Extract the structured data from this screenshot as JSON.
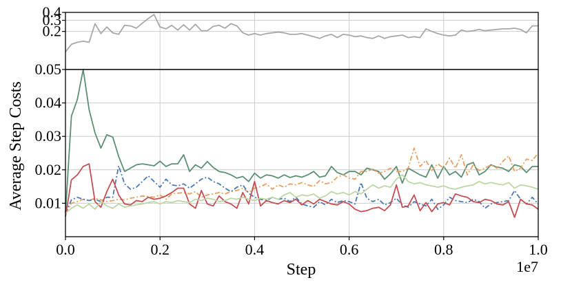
{
  "chart_data": {
    "type": "line",
    "ylabel": "Average Step Costs",
    "xlabel": "Step",
    "x_multiplier_label": "1e7",
    "xlim": [
      0,
      1.0
    ],
    "x_ticks": [
      "0.0",
      "0.2",
      "0.4",
      "0.6",
      "0.8",
      "1.0"
    ],
    "x_tick_values": [
      0.0,
      0.2,
      0.4,
      0.6,
      0.8,
      1.0
    ],
    "grid": true,
    "axis_break": true,
    "upper_panel": {
      "ylim": [
        0.05,
        0.4
      ],
      "y_ticks": [
        "0.4",
        "0.3",
        "0.2",
        "0.05"
      ],
      "y_tick_values": [
        0.4,
        0.3,
        0.2,
        0.05
      ],
      "scale": "log"
    },
    "lower_panel": {
      "ylim": [
        0.0,
        0.05
      ],
      "y_ticks": [
        "0.05",
        "0.04",
        "0.03",
        "0.02",
        "0.01"
      ],
      "y_tick_values": [
        0.05,
        0.04,
        0.03,
        0.02,
        0.01
      ]
    },
    "x": [
      0.0,
      0.0125,
      0.025,
      0.0375,
      0.05,
      0.0625,
      0.075,
      0.0875,
      0.1,
      0.1125,
      0.125,
      0.1375,
      0.15,
      0.1625,
      0.175,
      0.1875,
      0.2,
      0.2125,
      0.225,
      0.2375,
      0.25,
      0.2625,
      0.275,
      0.2875,
      0.3,
      0.3125,
      0.325,
      0.3375,
      0.35,
      0.3625,
      0.375,
      0.3875,
      0.4,
      0.4125,
      0.425,
      0.4375,
      0.45,
      0.4625,
      0.475,
      0.4875,
      0.5,
      0.5125,
      0.525,
      0.5375,
      0.55,
      0.5625,
      0.575,
      0.5875,
      0.6,
      0.6125,
      0.625,
      0.6375,
      0.65,
      0.6625,
      0.675,
      0.6875,
      0.7,
      0.7125,
      0.725,
      0.7375,
      0.75,
      0.7625,
      0.775,
      0.7875,
      0.8,
      0.8125,
      0.825,
      0.8375,
      0.85,
      0.8625,
      0.875,
      0.8875,
      0.9,
      0.9125,
      0.925,
      0.9375,
      0.95,
      0.9625,
      0.975,
      0.9875,
      1.0
    ],
    "series": [
      {
        "color": "#a8a8a8",
        "dash": "solid",
        "panel": "upper",
        "values": [
          0.095,
          0.125,
          0.135,
          0.14,
          0.135,
          0.265,
          0.185,
          0.235,
          0.19,
          0.18,
          0.25,
          0.245,
          0.225,
          0.27,
          0.32,
          0.37,
          0.235,
          0.22,
          0.25,
          0.21,
          0.255,
          0.21,
          0.26,
          0.205,
          0.205,
          0.24,
          0.25,
          0.225,
          0.265,
          0.245,
          0.19,
          0.175,
          0.185,
          0.175,
          0.185,
          0.19,
          0.195,
          0.19,
          0.18,
          0.18,
          0.185,
          0.175,
          0.165,
          0.155,
          0.17,
          0.18,
          0.16,
          0.18,
          0.175,
          0.165,
          0.17,
          0.16,
          0.155,
          0.17,
          0.155,
          0.165,
          0.17,
          0.175,
          0.16,
          0.165,
          0.16,
          0.22,
          0.2,
          0.185,
          0.175,
          0.17,
          0.175,
          0.21,
          0.2,
          0.205,
          0.215,
          0.205,
          0.21,
          0.215,
          0.22,
          0.22,
          0.225,
          0.215,
          0.19,
          0.245,
          0.245
        ]
      },
      {
        "color": "#5b8f72",
        "dash": "solid",
        "panel": "lower",
        "values": [
          0.007,
          0.036,
          0.041,
          0.05,
          0.038,
          0.031,
          0.0265,
          0.0305,
          0.0298,
          0.024,
          0.0195,
          0.0205,
          0.0215,
          0.0218,
          0.0215,
          0.0212,
          0.0226,
          0.021,
          0.0218,
          0.0218,
          0.0245,
          0.0195,
          0.0215,
          0.0205,
          0.0225,
          0.0207,
          0.0195,
          0.0192,
          0.0185,
          0.0175,
          0.018,
          0.0165,
          0.019,
          0.0175,
          0.0185,
          0.0182,
          0.0175,
          0.0185,
          0.0177,
          0.0182,
          0.0178,
          0.0185,
          0.0195,
          0.0178,
          0.0182,
          0.021,
          0.0192,
          0.0185,
          0.0195,
          0.0195,
          0.0185,
          0.0205,
          0.02,
          0.0195,
          0.0172,
          0.0188,
          0.021,
          0.016,
          0.0205,
          0.0195,
          0.0185,
          0.0178,
          0.0215,
          0.0175,
          0.021,
          0.0185,
          0.0195,
          0.0178,
          0.0215,
          0.0222,
          0.0185,
          0.0195,
          0.0215,
          0.0208,
          0.0205,
          0.0195,
          0.0215,
          0.021,
          0.0192,
          0.021,
          0.021
        ]
      },
      {
        "color": "#e8a060",
        "dash": "dashdot",
        "panel": "lower",
        "values": [
          0.007,
          0.01,
          0.0105,
          0.0112,
          0.0108,
          0.0115,
          0.011,
          0.0105,
          0.0108,
          0.0112,
          0.011,
          0.0115,
          0.0118,
          0.0122,
          0.012,
          0.0118,
          0.0125,
          0.0112,
          0.0128,
          0.013,
          0.0132,
          0.0128,
          0.0135,
          0.0118,
          0.0125,
          0.0128,
          0.0132,
          0.0128,
          0.0135,
          0.0138,
          0.0145,
          0.0132,
          0.0145,
          0.015,
          0.0158,
          0.0142,
          0.0155,
          0.0148,
          0.0158,
          0.0155,
          0.0162,
          0.0155,
          0.015,
          0.0168,
          0.0158,
          0.0162,
          0.0178,
          0.0185,
          0.0175,
          0.0172,
          0.0195,
          0.0195,
          0.0202,
          0.019,
          0.0195,
          0.0205,
          0.0195,
          0.0195,
          0.0205,
          0.0265,
          0.021,
          0.0228,
          0.0198,
          0.0218,
          0.0205,
          0.0235,
          0.0205,
          0.0245,
          0.0185,
          0.0215,
          0.0198,
          0.0205,
          0.0215,
          0.0205,
          0.0225,
          0.0242,
          0.0195,
          0.0205,
          0.0232,
          0.0228,
          0.025
        ]
      },
      {
        "color": "#4a78b5",
        "dash": "dashdot",
        "panel": "lower",
        "values": [
          0.007,
          0.011,
          0.0118,
          0.0112,
          0.0108,
          0.0112,
          0.0105,
          0.0118,
          0.0118,
          0.0212,
          0.0158,
          0.0142,
          0.0148,
          0.0165,
          0.0182,
          0.0165,
          0.0148,
          0.0172,
          0.0155,
          0.0152,
          0.0158,
          0.0145,
          0.0158,
          0.0172,
          0.0178,
          0.0165,
          0.0158,
          0.0145,
          0.0135,
          0.0148,
          0.0155,
          0.013,
          0.0118,
          0.0112,
          0.0108,
          0.0118,
          0.0112,
          0.0115,
          0.0105,
          0.0118,
          0.0098,
          0.0092,
          0.0088,
          0.0105,
          0.0095,
          0.0112,
          0.0102,
          0.0108,
          0.0105,
          0.0098,
          0.0162,
          0.0115,
          0.0105,
          0.0112,
          0.0095,
          0.0102,
          0.0115,
          0.0095,
          0.0088,
          0.0105,
          0.0098,
          0.0092,
          0.0112,
          0.0082,
          0.0095,
          0.0118,
          0.0108,
          0.0105,
          0.0102,
          0.0112,
          0.0105,
          0.0085,
          0.0098,
          0.0102,
          0.0105,
          0.0108,
          0.0138,
          0.0112,
          0.0098,
          0.0118,
          0.0098
        ]
      },
      {
        "color": "#c44e52",
        "dash": "solid",
        "panel": "lower",
        "values": [
          0.006,
          0.017,
          0.0185,
          0.021,
          0.0218,
          0.0105,
          0.0088,
          0.0135,
          0.0172,
          0.0125,
          0.0098,
          0.0095,
          0.0108,
          0.0105,
          0.0118,
          0.0112,
          0.0115,
          0.0122,
          0.0132,
          0.0145,
          0.0145,
          0.0098,
          0.0085,
          0.0138,
          0.0098,
          0.0092,
          0.0122,
          0.0105,
          0.0098,
          0.0085,
          0.0132,
          0.0098,
          0.0165,
          0.0092,
          0.0108,
          0.0102,
          0.0098,
          0.0108,
          0.0102,
          0.0112,
          0.0095,
          0.0108,
          0.0098,
          0.0112,
          0.0105,
          0.0098,
          0.0095,
          0.0105,
          0.0098,
          0.0082,
          0.0075,
          0.0078,
          0.0085,
          0.0088,
          0.0078,
          0.0095,
          0.0155,
          0.0088,
          0.0092,
          0.0125,
          0.0078,
          0.0102,
          0.0075,
          0.0098,
          0.0102,
          0.0095,
          0.0128,
          0.0122,
          0.0118,
          0.0105,
          0.0102,
          0.0112,
          0.0108,
          0.0098,
          0.0095,
          0.0105,
          0.0058,
          0.0112,
          0.0098,
          0.0095,
          0.0082
        ]
      },
      {
        "color": "#bcd6a5",
        "dash": "solid",
        "panel": "lower",
        "values": [
          0.007,
          0.0085,
          0.0095,
          0.0085,
          0.0098,
          0.0082,
          0.0105,
          0.0092,
          0.0085,
          0.0098,
          0.0088,
          0.0092,
          0.0095,
          0.0098,
          0.0102,
          0.0105,
          0.0098,
          0.0105,
          0.0102,
          0.0108,
          0.0105,
          0.0102,
          0.0112,
          0.0108,
          0.0115,
          0.0112,
          0.0105,
          0.0108,
          0.0115,
          0.0112,
          0.0118,
          0.0112,
          0.0108,
          0.0115,
          0.0112,
          0.0118,
          0.0112,
          0.0125,
          0.0132,
          0.0118,
          0.0125,
          0.0122,
          0.0128,
          0.0115,
          0.0122,
          0.0135,
          0.0128,
          0.0132,
          0.0125,
          0.0135,
          0.0128,
          0.0142,
          0.0155,
          0.0145,
          0.0152,
          0.0148,
          0.0172,
          0.0185,
          0.0165,
          0.0158,
          0.0162,
          0.0155,
          0.0152,
          0.0148,
          0.0152,
          0.0145,
          0.0142,
          0.0148,
          0.0152,
          0.0155,
          0.0165,
          0.0158,
          0.0162,
          0.0158,
          0.0155,
          0.0162,
          0.0145,
          0.0155,
          0.0152,
          0.0148,
          0.0142
        ]
      }
    ]
  }
}
